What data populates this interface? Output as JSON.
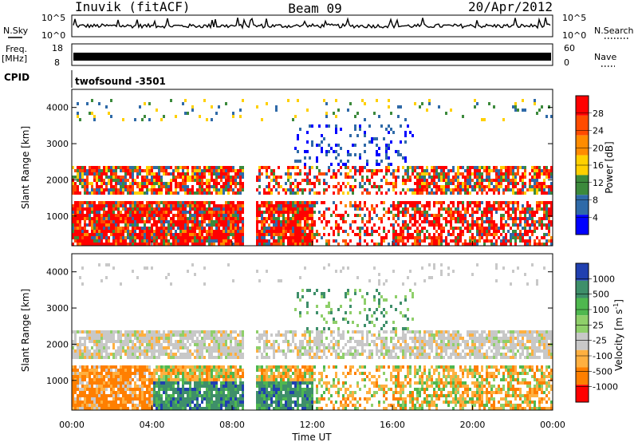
{
  "header": {
    "station": "Inuvik (fitACF)",
    "beam": "Beam 09",
    "date": "20/Apr/2012"
  },
  "sky_panel": {
    "left_label": "N.Sky",
    "left_ticks": [
      "10^5",
      "10^0"
    ],
    "right_label": "N.Search",
    "right_ticks": [
      "10^5",
      "10^0"
    ]
  },
  "freq_panel": {
    "left_label_line1": "Freq.",
    "left_label_line2": "[MHz]",
    "left_ticks": [
      "18",
      "8"
    ],
    "right_label": "Nave",
    "right_ticks": [
      "60",
      "0"
    ]
  },
  "cpid_panel": {
    "label": "CPID",
    "value": "twofsound -3501"
  },
  "chart_data": [
    {
      "type": "heatmap",
      "name": "power",
      "ylabel": "Slant Range [km]",
      "xlabel": "",
      "ylim": [
        180,
        4500
      ],
      "yticks": [
        "1000",
        "2000",
        "3000",
        "4000"
      ],
      "colorbar": {
        "label": "Power [dB]",
        "ticks": [
          "28",
          "24",
          "20",
          "16",
          "12",
          "8",
          "4"
        ],
        "colors": [
          "#ff0000",
          "#ff4b00",
          "#ff8c00",
          "#ffd000",
          "#3c8a3c",
          "#2f6aa8",
          "#0000ff"
        ]
      }
    },
    {
      "type": "heatmap",
      "name": "velocity",
      "ylabel": "Slant Range [km]",
      "xlabel": "Time UT",
      "ylim": [
        180,
        4500
      ],
      "yticks": [
        "1000",
        "2000",
        "3000",
        "4000"
      ],
      "xticks": [
        "00:00",
        "04:00",
        "08:00",
        "12:00",
        "16:00",
        "20:00",
        "00:00"
      ],
      "colorbar": {
        "label": "Velocity [m s",
        "label_sup": "-1",
        "label_end": "]",
        "ticks": [
          "1000",
          "500",
          "100",
          "25",
          "-25",
          "-100",
          "-500",
          "-1000"
        ],
        "colors": [
          "#2040b0",
          "#3e8f6a",
          "#4fb84f",
          "#8fcf6a",
          "#c8c8c8",
          "#ffb040",
          "#ff7f00",
          "#ff0000"
        ]
      }
    }
  ]
}
